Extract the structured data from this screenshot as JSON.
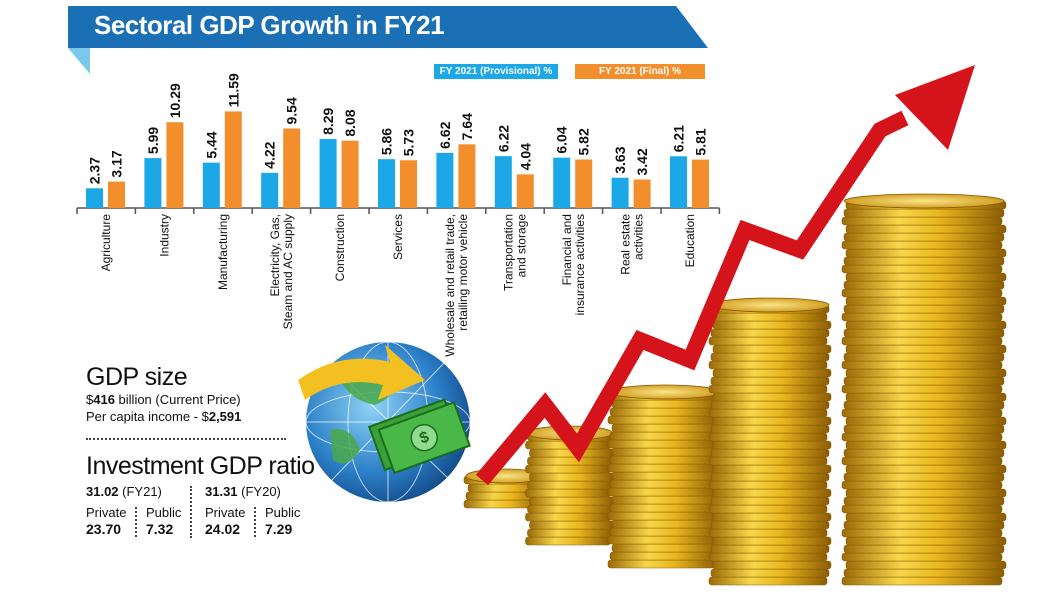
{
  "title": "Sectoral GDP Growth in FY21",
  "legend": {
    "provisional": "FY 2021 (Provisional) %",
    "final": "FY 2021 (Final) %"
  },
  "colors": {
    "provisional": "#1ca8e6",
    "final": "#f28f2c",
    "banner": "#1a6fb5"
  },
  "chart_data": {
    "type": "bar",
    "title": "Sectoral GDP Growth in FY21",
    "categories": [
      [
        "Agriculture"
      ],
      [
        "Industry"
      ],
      [
        "Manufacturing"
      ],
      [
        "Electricity, Gas,",
        "Steam and AC supply"
      ],
      [
        "Construction"
      ],
      [
        "Services"
      ],
      [
        "Wholesale and retail trade,",
        "retailing motor vehicle"
      ],
      [
        "Transportation",
        "and storage"
      ],
      [
        "Financial and",
        "insurance activities"
      ],
      [
        "Real estate",
        "activities"
      ],
      [
        "Education"
      ]
    ],
    "series": [
      {
        "name": "FY 2021 (Provisional) %",
        "values": [
          2.37,
          5.99,
          5.44,
          4.22,
          8.29,
          5.86,
          6.62,
          6.22,
          6.04,
          3.63,
          6.21
        ]
      },
      {
        "name": "FY 2021 (Final) %",
        "values": [
          3.17,
          10.29,
          11.59,
          9.54,
          8.08,
          5.73,
          7.64,
          4.04,
          5.82,
          3.42,
          5.81
        ]
      }
    ],
    "ylim": [
      0,
      12
    ],
    "grid": false,
    "legend_position": "top-right"
  },
  "gdp": {
    "heading": "GDP size",
    "size_prefix": "$",
    "size_value": "416",
    "size_suffix": " billion (Current Price)",
    "per_capita_prefix": "Per capita income - $",
    "per_capita_value": "2,591"
  },
  "investment": {
    "heading": "Investment GDP ratio",
    "fy21": {
      "total": "31.02",
      "label": " (FY21)",
      "private_label": "Private",
      "private": "23.70",
      "public_label": "Public",
      "public": "7.32"
    },
    "fy20": {
      "total": "31.31",
      "label": " (FY20)",
      "private_label": "Private",
      "private": "24.02",
      "public_label": "Public",
      "public": "7.29"
    }
  }
}
